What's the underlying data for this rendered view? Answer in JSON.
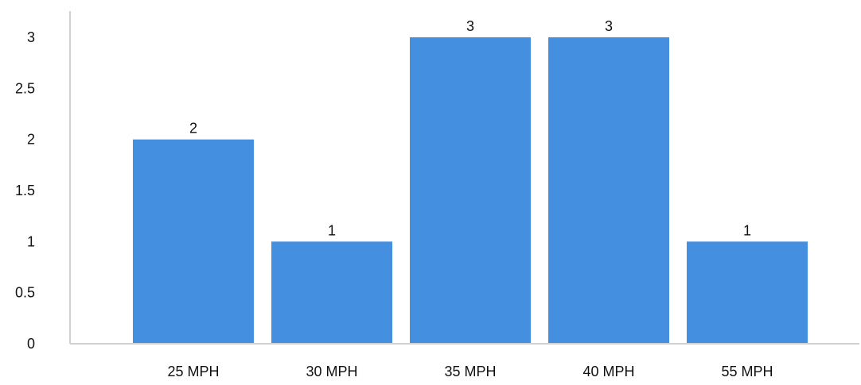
{
  "chart_data": {
    "type": "bar",
    "categories": [
      "25 MPH",
      "30 MPH",
      "35 MPH",
      "40 MPH",
      "55 MPH"
    ],
    "values": [
      2,
      1,
      3,
      3,
      1
    ],
    "ylim": [
      0,
      3
    ],
    "yticks": [
      "0",
      "0.5",
      "1",
      "1.5",
      "2",
      "2.5",
      "3"
    ],
    "ytick_values": [
      0,
      0.5,
      1,
      1.5,
      2,
      2.5,
      3
    ],
    "data_labels": [
      "2",
      "1",
      "3",
      "3",
      "1"
    ],
    "bar_color": "#448FDF",
    "grid": false,
    "legend": "none"
  }
}
